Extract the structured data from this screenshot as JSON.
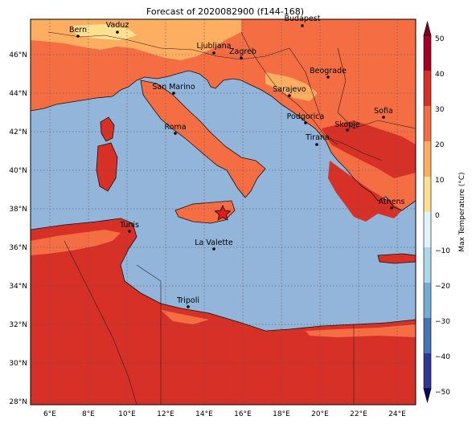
{
  "title": "Forecast of 2020082900 (f144-168)",
  "colorbar": {
    "label": "Max Temperature (°C)",
    "ticks": [
      "50",
      "40",
      "30",
      "20",
      "10",
      "0",
      "−10",
      "−20",
      "−30",
      "−40",
      "−50"
    ]
  },
  "lat_ticks": [
    "46°N",
    "44°N",
    "42°N",
    "40°N",
    "38°N",
    "36°N",
    "34°N",
    "32°N",
    "30°N",
    "28°N"
  ],
  "lon_ticks": [
    "6°E",
    "8°E",
    "10°E",
    "12°E",
    "14°E",
    "16°E",
    "18°E",
    "20°E",
    "22°E",
    "24°E"
  ],
  "cities": [
    {
      "name": "Budapest"
    },
    {
      "name": "Bern"
    },
    {
      "name": "Vaduz"
    },
    {
      "name": "Ljubljana"
    },
    {
      "name": "Zagreb"
    },
    {
      "name": "Beograde"
    },
    {
      "name": "San Marino"
    },
    {
      "name": "Sarajevo"
    },
    {
      "name": "Sofia"
    },
    {
      "name": "Podgorica"
    },
    {
      "name": "Skopje"
    },
    {
      "name": "Roma"
    },
    {
      "name": "Tirana"
    },
    {
      "name": "Athens"
    },
    {
      "name": "Tunis"
    },
    {
      "name": "La Valette"
    },
    {
      "name": "Tripoli"
    }
  ],
  "colors": {
    "sea": "#92b5d9",
    "land_warm": "#f46d43",
    "land_hot": "#d73027",
    "land_mild": "#fdae61",
    "land_cool": "#fee090",
    "marker": "#e31a1c"
  }
}
